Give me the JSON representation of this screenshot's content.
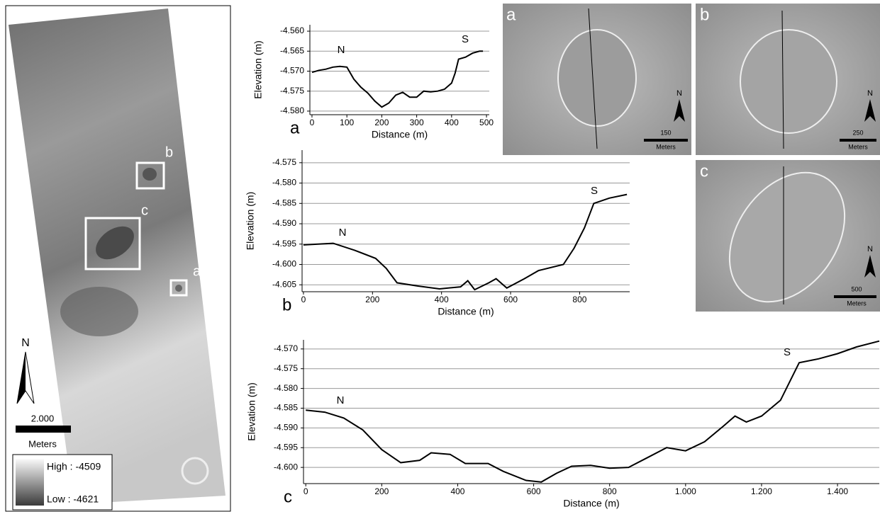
{
  "chart_data": [
    {
      "type": "line",
      "label": "a",
      "xlabel": "Distance (m)",
      "ylabel": "Elevation (m)",
      "annotations": [
        "N",
        "S"
      ],
      "grid": true,
      "x": [
        0,
        20,
        40,
        60,
        80,
        100,
        120,
        140,
        160,
        180,
        200,
        220,
        240,
        260,
        280,
        300,
        320,
        340,
        360,
        380,
        400,
        410,
        420,
        440,
        460,
        480,
        490
      ],
      "series": [
        {
          "color": "#000000",
          "values": [
            -4.5703,
            -4.5698,
            -4.5695,
            -4.569,
            -4.5688,
            -4.569,
            -4.572,
            -4.574,
            -4.5755,
            -4.5775,
            -4.579,
            -4.578,
            -4.576,
            -4.5753,
            -4.5765,
            -4.5765,
            -4.575,
            -4.5752,
            -4.575,
            -4.5745,
            -4.573,
            -4.5705,
            -4.567,
            -4.5665,
            -4.5655,
            -4.565,
            -4.565
          ]
        }
      ],
      "xlim": [
        -6,
        508
      ],
      "ylim": [
        -4.5809,
        -4.5584
      ],
      "xticks": [
        0,
        100,
        200,
        300,
        400,
        500
      ],
      "yticks": [
        {
          "value": -4.56,
          "label": "-4.560"
        },
        -4.565,
        {
          "value": -4.57,
          "label": "-4.570"
        },
        -4.575,
        {
          "value": -4.58,
          "label": "-4.580"
        }
      ]
    },
    {
      "type": "line",
      "label": "b",
      "xlabel": "Distance (m)",
      "ylabel": "Elevation (m)",
      "annotations": [
        "N",
        "S"
      ],
      "grid": true,
      "x": [
        0,
        86,
        148,
        209,
        240,
        271,
        332,
        394,
        455,
        476,
        496,
        537,
        558,
        589,
        640,
        681,
        753,
        784,
        814,
        841,
        886,
        937
      ],
      "series": [
        {
          "color": "#000000",
          "values": [
            -4.5952,
            -4.5948,
            -4.5965,
            -4.5985,
            -4.601,
            -4.6045,
            -4.6053,
            -4.606,
            -4.6055,
            -4.604,
            -4.6062,
            -4.6045,
            -4.6035,
            -4.6058,
            -4.6035,
            -4.6015,
            -4.6,
            -4.596,
            -4.591,
            -4.585,
            -4.5837,
            -4.5828
          ]
        }
      ],
      "xlim": [
        -4,
        945
      ],
      "ylim": [
        -4.6067,
        -4.5719
      ],
      "xticks": [
        0,
        200,
        400,
        600,
        800
      ],
      "yticks": [
        -4.575,
        {
          "value": -4.58,
          "label": "-4.580"
        },
        -4.585,
        {
          "value": -4.59,
          "label": "-4.590"
        },
        -4.595,
        {
          "value": -4.6,
          "label": "-4.600"
        },
        -4.605
      ]
    },
    {
      "type": "line",
      "label": "c",
      "xlabel": "Distance (m)",
      "ylabel": "Elevation (m)",
      "annotations": [
        "N",
        "S"
      ],
      "grid": true,
      "x": [
        0,
        50,
        100,
        150,
        200,
        250,
        300,
        330,
        380,
        420,
        480,
        520,
        580,
        620,
        660,
        700,
        750,
        800,
        850,
        900,
        950,
        1000,
        1050,
        1100,
        1130,
        1160,
        1200,
        1250,
        1299,
        1350,
        1400,
        1450,
        1510
      ],
      "series": [
        {
          "color": "#000000",
          "values": [
            -4.5855,
            -4.586,
            -4.5875,
            -4.5905,
            -4.5955,
            -4.5988,
            -4.5982,
            -4.5963,
            -4.5967,
            -4.599,
            -4.599,
            -4.601,
            -4.6033,
            -4.6037,
            -4.6015,
            -4.5997,
            -4.5995,
            -4.6002,
            -4.6,
            -4.5975,
            -4.595,
            -4.5958,
            -4.5935,
            -4.5895,
            -4.587,
            -4.5885,
            -4.587,
            -4.583,
            -4.5735,
            -4.5725,
            -4.5712,
            -4.5695,
            -4.568
          ]
        }
      ],
      "xlim": [
        -6,
        1510
      ],
      "ylim": [
        -4.6041,
        -4.5677
      ],
      "xticks": [
        0,
        200,
        400,
        600,
        800,
        {
          "value": 1000,
          "label": "1.000"
        },
        {
          "value": 1200,
          "label": "1.200"
        },
        {
          "value": 1400,
          "label": "1.400"
        }
      ],
      "yticks": [
        {
          "value": -4.57,
          "label": "-4.570"
        },
        -4.575,
        {
          "value": -4.58,
          "label": "-4.580"
        },
        -4.585,
        {
          "value": -4.59,
          "label": "-4.590"
        },
        -4.595,
        {
          "value": -4.6,
          "label": "-4.600"
        }
      ]
    }
  ],
  "map": {
    "box_labels": [
      "a",
      "b",
      "c"
    ],
    "north": "N",
    "scale": "2.000",
    "scale_unit": "Meters",
    "legend_high": "High : -4509",
    "legend_low": "Low : -4621"
  },
  "images": [
    {
      "label": "a",
      "north": "N",
      "scale": "150",
      "unit": "Meters"
    },
    {
      "label": "b",
      "north": "N",
      "scale": "250",
      "unit": "Meters"
    },
    {
      "label": "c",
      "north": "N",
      "scale": "500",
      "unit": "Meters"
    }
  ]
}
